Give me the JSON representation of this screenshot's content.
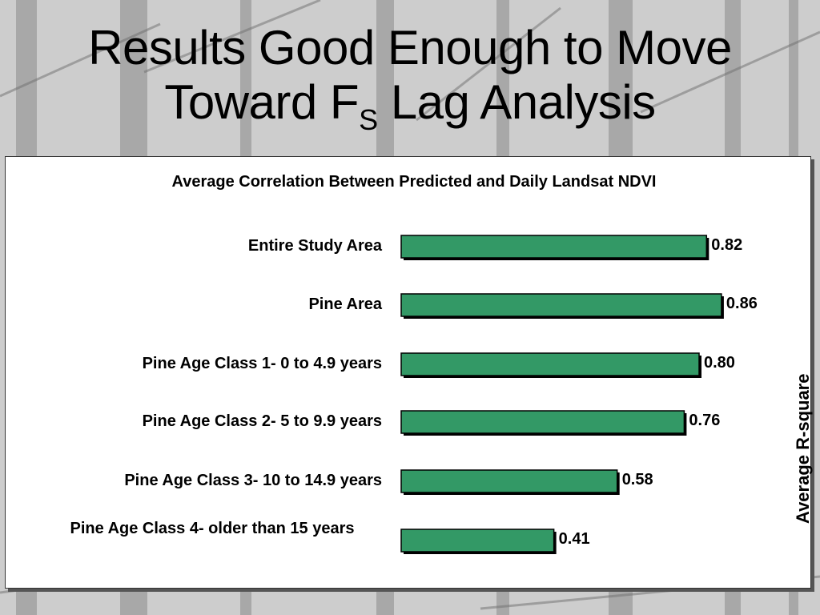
{
  "slide": {
    "title_line1": "Results Good Enough to Move",
    "title_line2_pre": "Toward F",
    "title_sub": "S",
    "title_line2_post": " Lag Analysis"
  },
  "chart_data": {
    "type": "bar",
    "orientation": "horizontal",
    "title": "Average Correlation Between Predicted and Daily Landsat NDVI",
    "categories": [
      "Entire Study Area",
      "Pine Area",
      "Pine Age Class 1- 0 to 4.9 years",
      "Pine Age Class 2- 5 to 9.9 years",
      "Pine Age Class 3- 10 to 14.9 years",
      "Pine Age Class 4- older than 15 years"
    ],
    "values": [
      0.82,
      0.86,
      0.8,
      0.76,
      0.58,
      0.41
    ],
    "value_labels": [
      "0.82",
      "0.86",
      "0.80",
      "0.76",
      "0.58",
      "0.41"
    ],
    "ylabel": "Average R-square",
    "xlim": [
      0,
      1
    ],
    "grid": false,
    "bar_color": "#339966"
  }
}
